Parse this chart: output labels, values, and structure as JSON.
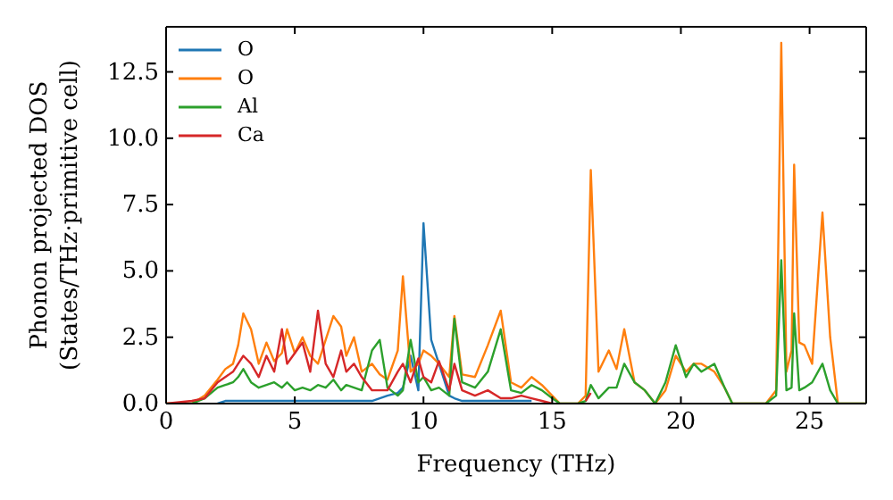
{
  "chart_data": {
    "type": "line",
    "xlabel": "Frequency (THz)",
    "ylabel": "Phonon projected DOS\n(States/THz·primitive cell)",
    "x": [
      0,
      1,
      1.5,
      2,
      2.3,
      2.6,
      2.8,
      3.0,
      3.3,
      3.6,
      3.9,
      4.2,
      4.5,
      4.7,
      5.0,
      5.3,
      5.6,
      5.9,
      6.2,
      6.5,
      6.8,
      7.0,
      7.3,
      7.6,
      8.0,
      8.3,
      8.6,
      9.0,
      9.2,
      9.5,
      9.8,
      10.0,
      10.3,
      10.6,
      11.0,
      11.2,
      11.5,
      12.0,
      12.5,
      13.0,
      13.4,
      13.8,
      14.2,
      14.6,
      15.0,
      15.3,
      16.0,
      16.3,
      16.5,
      16.8,
      17.2,
      17.5,
      17.8,
      18.2,
      18.6,
      19.0,
      19.4,
      19.8,
      20.2,
      20.5,
      20.8,
      21.3,
      21.7,
      22.0,
      23.3,
      23.7,
      23.9,
      24.1,
      24.3,
      24.4,
      24.6,
      24.8,
      25.1,
      25.5,
      25.8,
      26.1,
      27.2
    ],
    "series": [
      {
        "name": "O",
        "color": "#1f77b4",
        "values": [
          null,
          null,
          null,
          0,
          0.1,
          0.1,
          0.1,
          0.1,
          0.1,
          0.1,
          0.1,
          0.1,
          0.1,
          0.1,
          0.1,
          0.1,
          0.1,
          0.1,
          0.1,
          0.1,
          0.1,
          0.1,
          0.1,
          0.1,
          0.1,
          0.2,
          0.3,
          0.4,
          0.6,
          1.8,
          0.5,
          6.8,
          2.4,
          1.5,
          0.3,
          0.2,
          0.1,
          0.1,
          0.1,
          0.1,
          0.1,
          0.1,
          0.1,
          null,
          null,
          null,
          null,
          null,
          null,
          null,
          null,
          null,
          null,
          null,
          null,
          null,
          null,
          null,
          null,
          null,
          null,
          null,
          null,
          null,
          null,
          null,
          null,
          null,
          null,
          null,
          null,
          null,
          null,
          null,
          null,
          null,
          null
        ]
      },
      {
        "name": "O",
        "color": "#ff7f0e",
        "values": [
          0,
          0,
          0.3,
          0.9,
          1.3,
          1.5,
          2.2,
          3.4,
          2.8,
          1.5,
          2.3,
          1.6,
          1.9,
          2.8,
          1.9,
          2.5,
          1.8,
          1.5,
          2.4,
          3.3,
          2.9,
          1.8,
          2.5,
          1.2,
          1.5,
          1.1,
          0.9,
          2.0,
          4.8,
          1.2,
          1.5,
          2.0,
          1.8,
          1.5,
          1.0,
          3.3,
          1.1,
          1.0,
          2.2,
          3.5,
          0.8,
          0.6,
          1.0,
          0.7,
          0.3,
          0,
          0,
          0.3,
          8.8,
          1.2,
          2.0,
          1.3,
          2.8,
          0.8,
          0.5,
          0,
          0.5,
          1.8,
          1.2,
          1.5,
          1.5,
          1.2,
          0.6,
          0,
          0,
          0.5,
          13.6,
          1.2,
          2.0,
          9.0,
          2.3,
          2.2,
          1.5,
          7.2,
          2.5,
          0,
          0
        ]
      },
      {
        "name": "Al",
        "color": "#2ca02c",
        "values": [
          0,
          0,
          0.2,
          0.6,
          0.7,
          0.8,
          1.0,
          1.3,
          0.8,
          0.6,
          0.7,
          0.8,
          0.6,
          0.8,
          0.5,
          0.6,
          0.5,
          0.7,
          0.6,
          0.9,
          0.5,
          0.7,
          0.6,
          0.5,
          2.0,
          2.4,
          0.6,
          0.3,
          0.5,
          2.4,
          0.8,
          1.0,
          0.5,
          0.6,
          0.3,
          3.2,
          0.8,
          0.6,
          1.2,
          2.8,
          0.5,
          0.4,
          0.7,
          0.5,
          0.2,
          0,
          0,
          0.1,
          0.7,
          0.2,
          0.6,
          0.6,
          1.5,
          0.8,
          0.5,
          0,
          0.8,
          2.2,
          1.0,
          1.5,
          1.2,
          1.5,
          0.6,
          0,
          0,
          0.3,
          5.4,
          0.5,
          0.6,
          3.4,
          0.5,
          0.6,
          0.8,
          1.5,
          0.5,
          0,
          0
        ]
      },
      {
        "name": "Ca",
        "color": "#d62728",
        "values": [
          0,
          0.1,
          0.2,
          0.8,
          1.0,
          1.2,
          1.5,
          1.8,
          1.5,
          1.0,
          1.8,
          1.2,
          2.8,
          1.5,
          1.9,
          2.3,
          1.2,
          3.5,
          1.5,
          1.0,
          2.0,
          1.2,
          1.5,
          1.0,
          0.5,
          0.5,
          0.5,
          1.2,
          1.5,
          0.8,
          1.7,
          1.0,
          0.8,
          1.6,
          0.5,
          1.5,
          0.5,
          0.3,
          0.5,
          0.2,
          0.2,
          0.3,
          0.2,
          0.1,
          0,
          null,
          null,
          0.1,
          0.4,
          null,
          null,
          null,
          null,
          null,
          null,
          null,
          null,
          null,
          null,
          null,
          null,
          null,
          null,
          null,
          null,
          null,
          null,
          null,
          null,
          null,
          null,
          null,
          null,
          null,
          null,
          null,
          null
        ]
      }
    ],
    "xlim": [
      0,
      27.2
    ],
    "xticks": [
      0,
      5,
      10,
      15,
      20,
      25
    ],
    "ylim": [
      0,
      14.2
    ],
    "yticks": [
      {
        "value": 0,
        "label": "0.0"
      },
      {
        "value": 2.5,
        "label": "2.5"
      },
      {
        "value": 5,
        "label": "5.0"
      },
      {
        "value": 7.5,
        "label": "7.5"
      },
      {
        "value": 10,
        "label": "10.0"
      },
      {
        "value": 12.5,
        "label": "12.5"
      }
    ],
    "legend": "top left",
    "grid": false,
    "marker": "none",
    "line_style": "solid"
  }
}
